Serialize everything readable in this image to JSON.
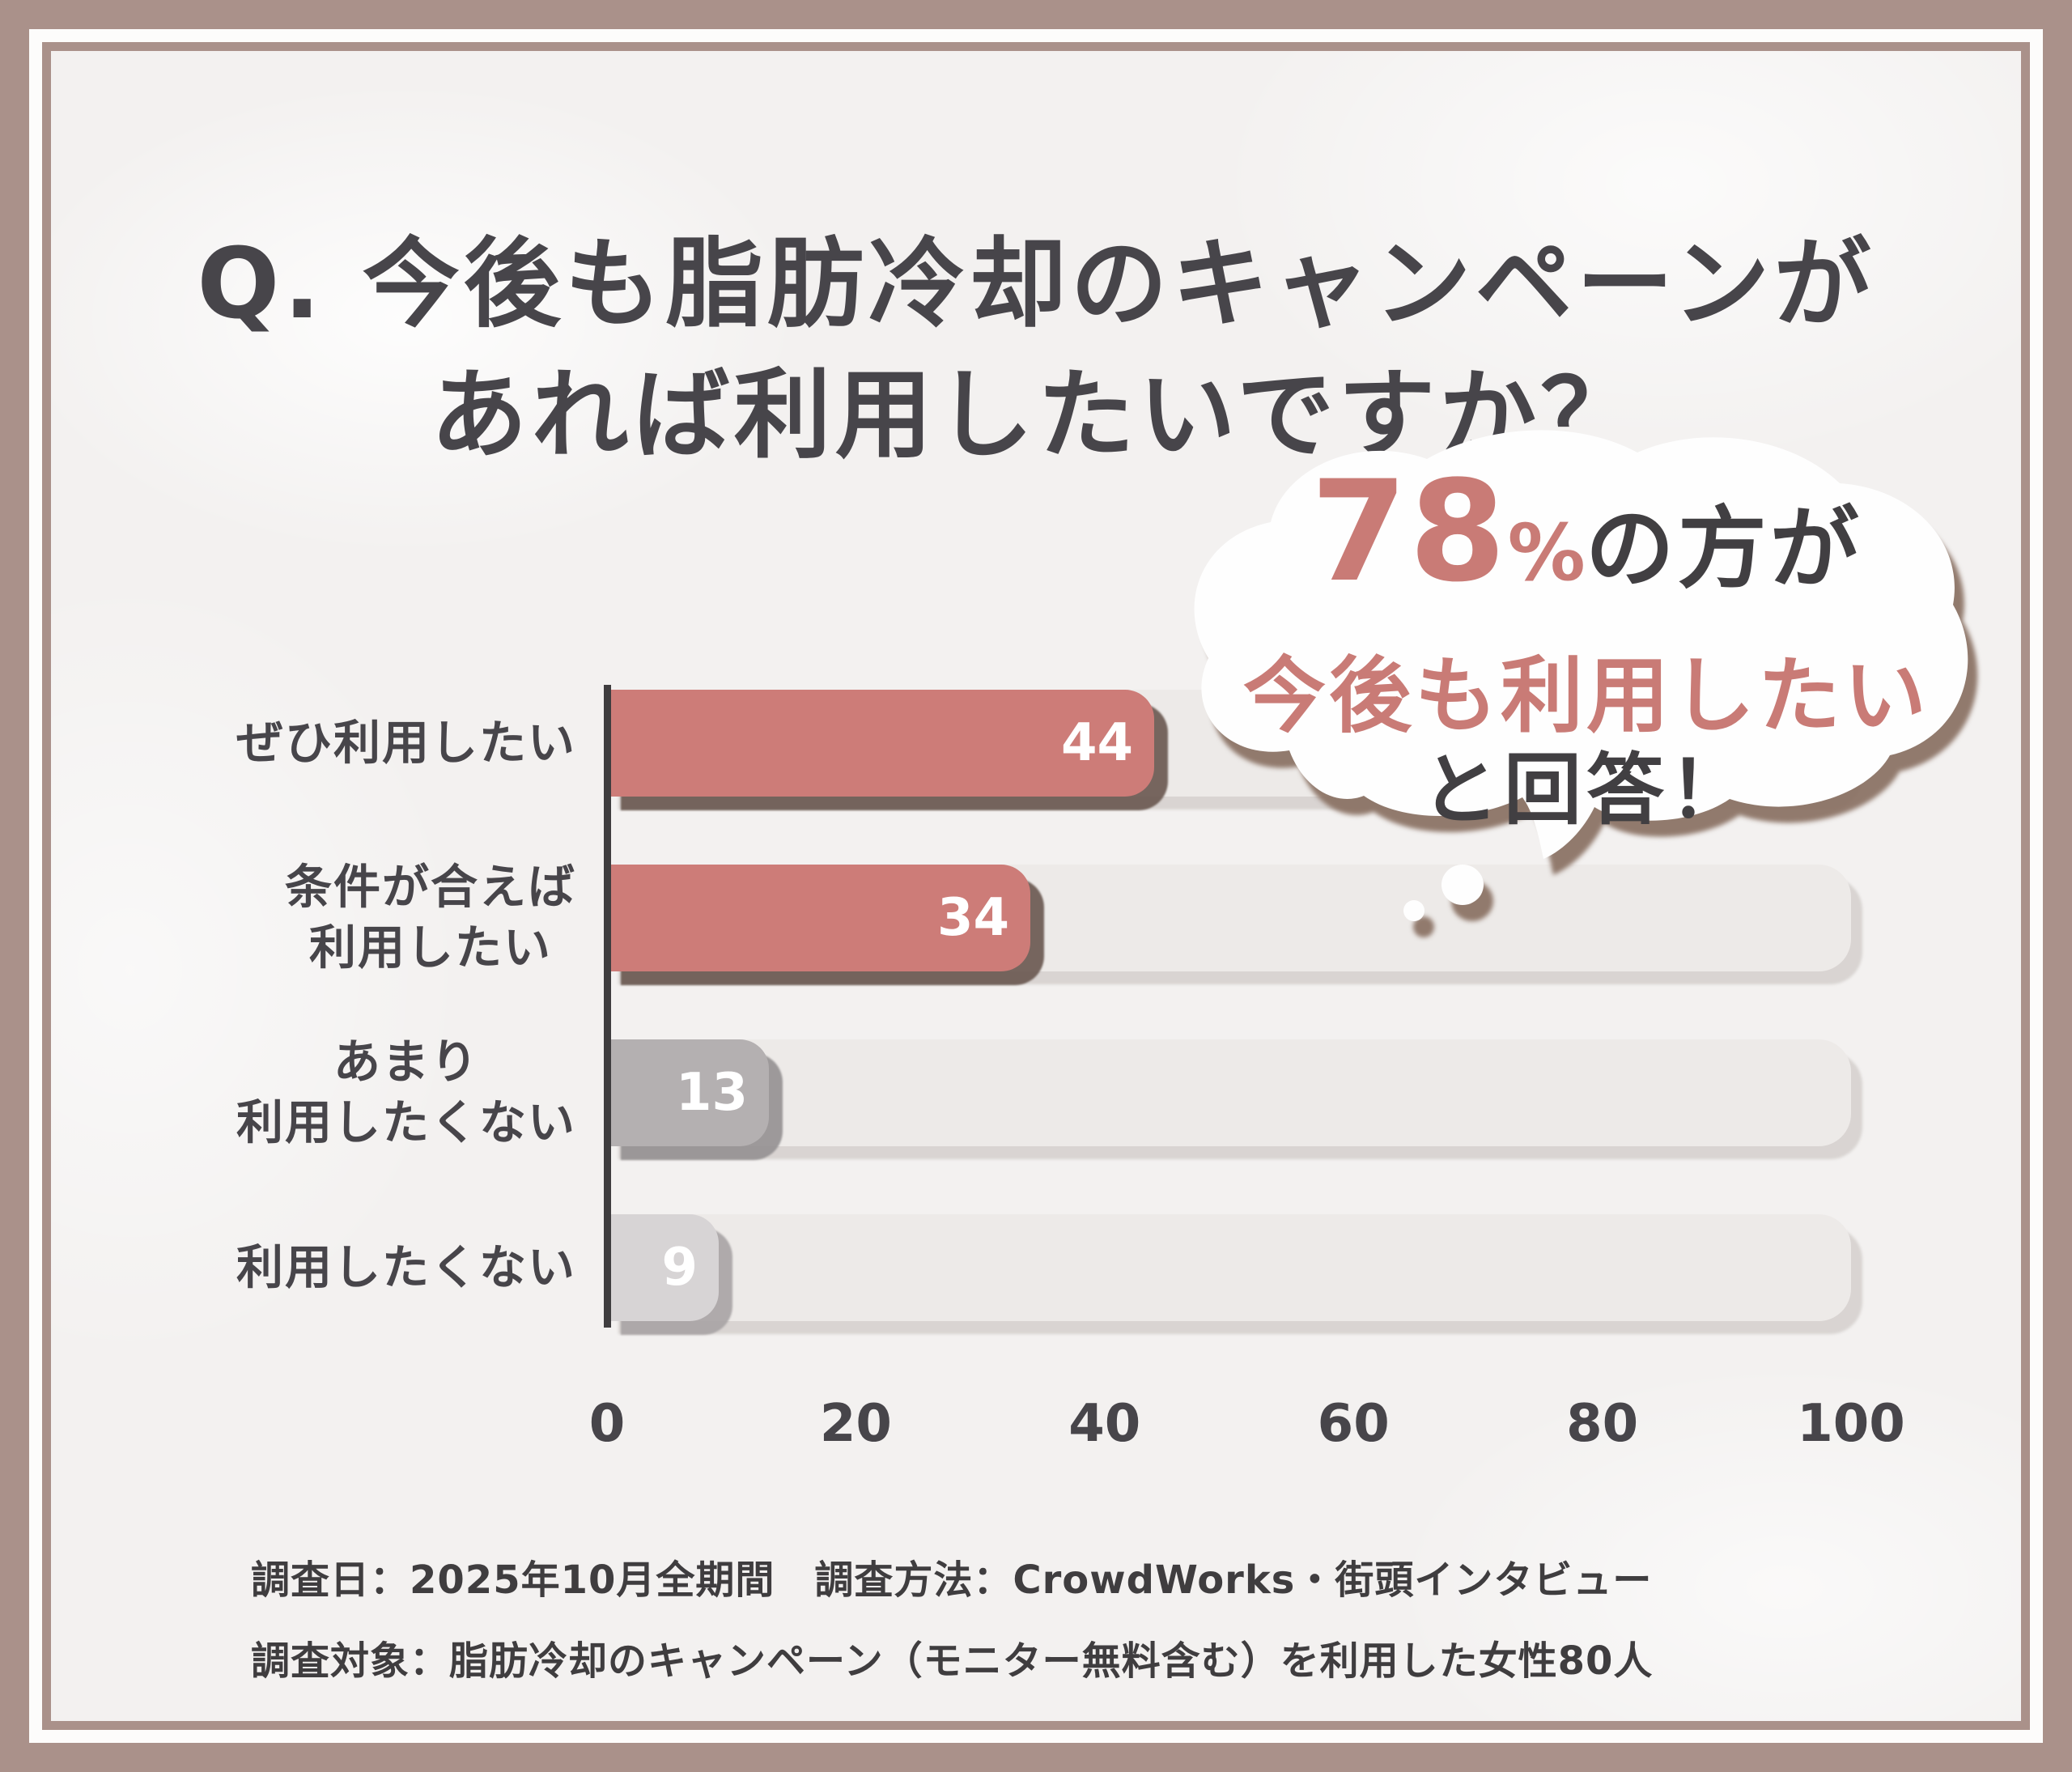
{
  "title": {
    "line1": "Q. 今後も脂肪冷却のキャンペーンが",
    "line2": "あれば利用したいですか？"
  },
  "bubble": {
    "percent": "78",
    "percent_sign": "%",
    "line1_suffix": "の方が",
    "line2": "今後も利用したい",
    "line3": "と回答！"
  },
  "chart_data": {
    "type": "bar",
    "orientation": "horizontal",
    "title": "今後も脂肪冷却のキャンペーンがあれば利用したいですか？",
    "categories": [
      "ぜひ利用したい",
      "条件が合えば利用したい",
      "あまり利用したくない",
      "利用したくない"
    ],
    "categories_lines": [
      [
        "ぜひ利用したい"
      ],
      [
        "条件が合えば",
        "利用したい"
      ],
      [
        "あまり",
        "利用したくない"
      ],
      [
        "利用したくない"
      ]
    ],
    "values": [
      44,
      34,
      13,
      9
    ],
    "xticks": [
      0,
      20,
      40,
      60,
      80,
      100
    ],
    "xlim": [
      0,
      100
    ],
    "grid": false,
    "legend": "none",
    "annotation": "78%の方が今後も利用したいと回答！"
  },
  "footer": {
    "line1": "調査日：2025年10月全期間　調査方法：CrowdWorks・街頭インタビュー",
    "line2": "調査対象：脂肪冷却のキャンペーン（モニター無料含む）を利用した女性80人"
  },
  "colors": {
    "frame_outer": "#aa918a",
    "frame_white": "#fdfcfb",
    "content_bg": "#f3f1f0",
    "text_dark": "#47454a",
    "accent_red": "#c97b76",
    "bar_red": "#cd7c78",
    "bar_gray": "#b4b0b1",
    "bar_light_gray": "#d7d4d5",
    "bar_colors": [
      "#cd7c78",
      "#cd7c78",
      "#b4b0b1",
      "#d7d4d5"
    ],
    "bar_shadows": [
      "rgba(104,87,79,0.9)",
      "rgba(104,87,79,0.9)",
      "rgba(148,144,145,0.9)",
      "rgba(167,163,164,0.9)"
    ],
    "track": "#edeae8",
    "axis": "#3f3d3f",
    "value_text": "#ffffff",
    "bubble_fill": "#fefefe",
    "bubble_shadow": "#8a7164"
  }
}
